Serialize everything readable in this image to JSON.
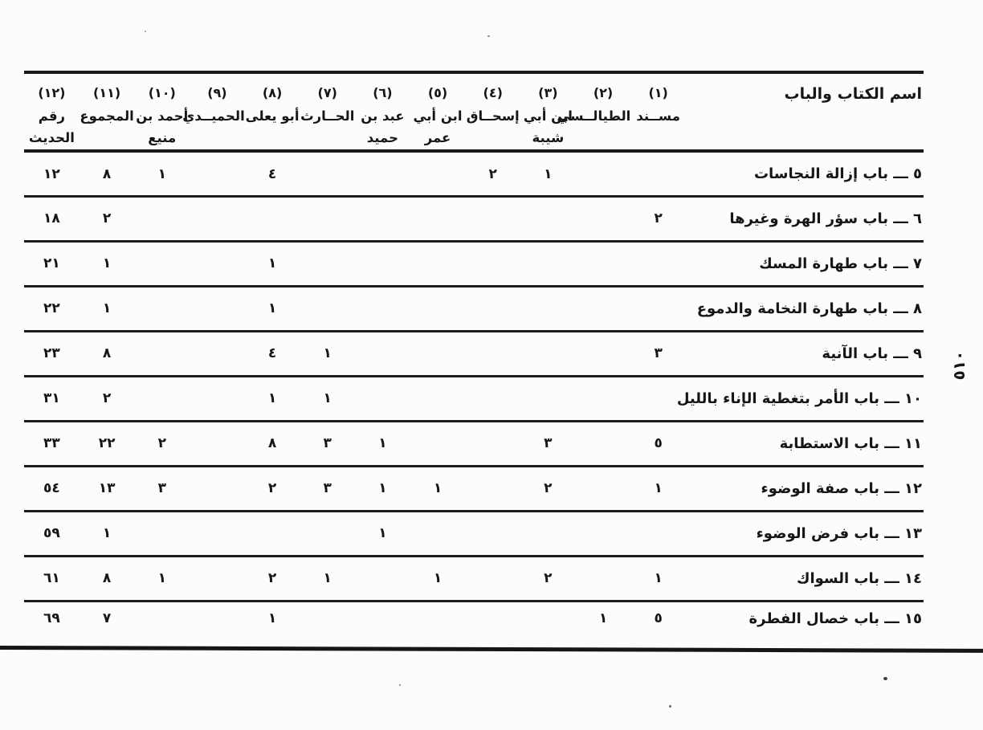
{
  "page": {
    "page_number": "٥١٠"
  },
  "table": {
    "name_header": "اسم الكتاب والباب",
    "columns": [
      {
        "num": "(١)",
        "name": "مســند"
      },
      {
        "num": "(٢)",
        "name": "الطيالــسي"
      },
      {
        "num": "(٣)",
        "name": "ابن أبي\nشيبة"
      },
      {
        "num": "(٤)",
        "name": "إسحــاق"
      },
      {
        "num": "(٥)",
        "name": "ابن أبي\nعمر"
      },
      {
        "num": "(٦)",
        "name": "عبد بن\nحميد"
      },
      {
        "num": "(٧)",
        "name": "الحــارث"
      },
      {
        "num": "(٨)",
        "name": "أبو يعلى"
      },
      {
        "num": "(٩)",
        "name": "الحميــدي"
      },
      {
        "num": "(١٠)",
        "name": "أحمد بن\nمنيع"
      },
      {
        "num": "(١١)",
        "name": "المجموع"
      },
      {
        "num": "(١٢)",
        "name": "رقم الحديث"
      }
    ],
    "rows": [
      {
        "label": "٥ ـــ باب إزالة النجاسات",
        "values": [
          "",
          "",
          "١",
          "٢",
          "",
          "",
          "",
          "٤",
          "",
          "١",
          "٨",
          "١٢"
        ]
      },
      {
        "label": "٦ ـــ باب سؤر الهرة وغيرها",
        "values": [
          "٢",
          "",
          "",
          "",
          "",
          "",
          "",
          "",
          "",
          "",
          "٢",
          "١٨"
        ]
      },
      {
        "label": "٧ ـــ باب طهارة المسك",
        "values": [
          "",
          "",
          "",
          "",
          "",
          "",
          "",
          "١",
          "",
          "",
          "١",
          "٢١"
        ]
      },
      {
        "label": "٨ ـــ باب طهارة النخامة والدموع",
        "values": [
          "",
          "",
          "",
          "",
          "",
          "",
          "",
          "١",
          "",
          "",
          "١",
          "٢٢"
        ]
      },
      {
        "label": "٩ ـــ باب الآنية",
        "values": [
          "٣",
          "",
          "",
          "",
          "",
          "",
          "١",
          "٤",
          "",
          "",
          "٨",
          "٢٣"
        ]
      },
      {
        "label": "١٠ ـــ باب الأمر بتغطية الإناء بالليل",
        "values": [
          "",
          "",
          "",
          "",
          "",
          "",
          "١",
          "١",
          "",
          "",
          "٢",
          "٣١"
        ]
      },
      {
        "label": "١١ ـــ باب الاستطابة",
        "values": [
          "٥",
          "",
          "٣",
          "",
          "",
          "١",
          "٣",
          "٨",
          "",
          "٢",
          "٢٢",
          "٣٣"
        ]
      },
      {
        "label": "١٢ ـــ باب صفة الوضوء",
        "values": [
          "١",
          "",
          "٢",
          "",
          "١",
          "١",
          "٣",
          "٢",
          "",
          "٣",
          "١٣",
          "٥٤"
        ]
      },
      {
        "label": "١٣ ـــ باب فرض الوضوء",
        "values": [
          "",
          "",
          "",
          "",
          "",
          "١",
          "",
          "",
          "",
          "",
          "١",
          "٥٩"
        ]
      },
      {
        "label": "١٤ ـــ باب السواك",
        "values": [
          "١",
          "",
          "٢",
          "",
          "١",
          "",
          "١",
          "٢",
          "",
          "١",
          "٨",
          "٦١"
        ]
      },
      {
        "label": "١٥ ـــ باب خصال الفطرة",
        "values": [
          "٥",
          "١",
          "",
          "",
          "",
          "",
          "",
          "١",
          "",
          "",
          "٧",
          "٦٩"
        ]
      }
    ]
  }
}
